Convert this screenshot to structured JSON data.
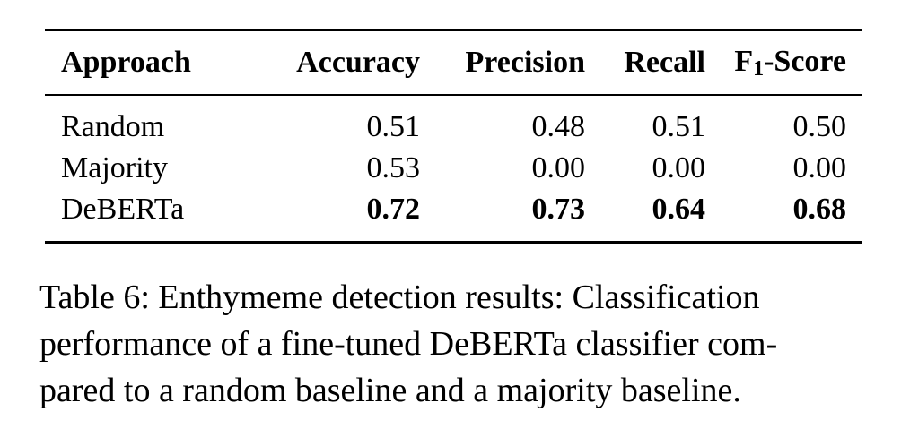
{
  "table": {
    "headers": {
      "approach": "Approach",
      "accuracy": "Accuracy",
      "precision": "Precision",
      "recall": "Recall",
      "f1_prefix": "F",
      "f1_sub": "1",
      "f1_suffix": "-Score"
    },
    "rows": [
      {
        "approach": "Random",
        "accuracy": "0.51",
        "precision": "0.48",
        "recall": "0.51",
        "f1": "0.50",
        "bold": false
      },
      {
        "approach": "Majority",
        "accuracy": "0.53",
        "precision": "0.00",
        "recall": "0.00",
        "f1": "0.00",
        "bold": false
      },
      {
        "approach": "DeBERTa",
        "accuracy": "0.72",
        "precision": "0.73",
        "recall": "0.64",
        "f1": "0.68",
        "bold": true
      }
    ]
  },
  "caption": {
    "line1": "Table 6: Enthymeme detection results: Classification",
    "line2": "performance of a fine-tuned DeBERTa classifier com-",
    "line3": "pared to a random baseline and a majority baseline."
  }
}
